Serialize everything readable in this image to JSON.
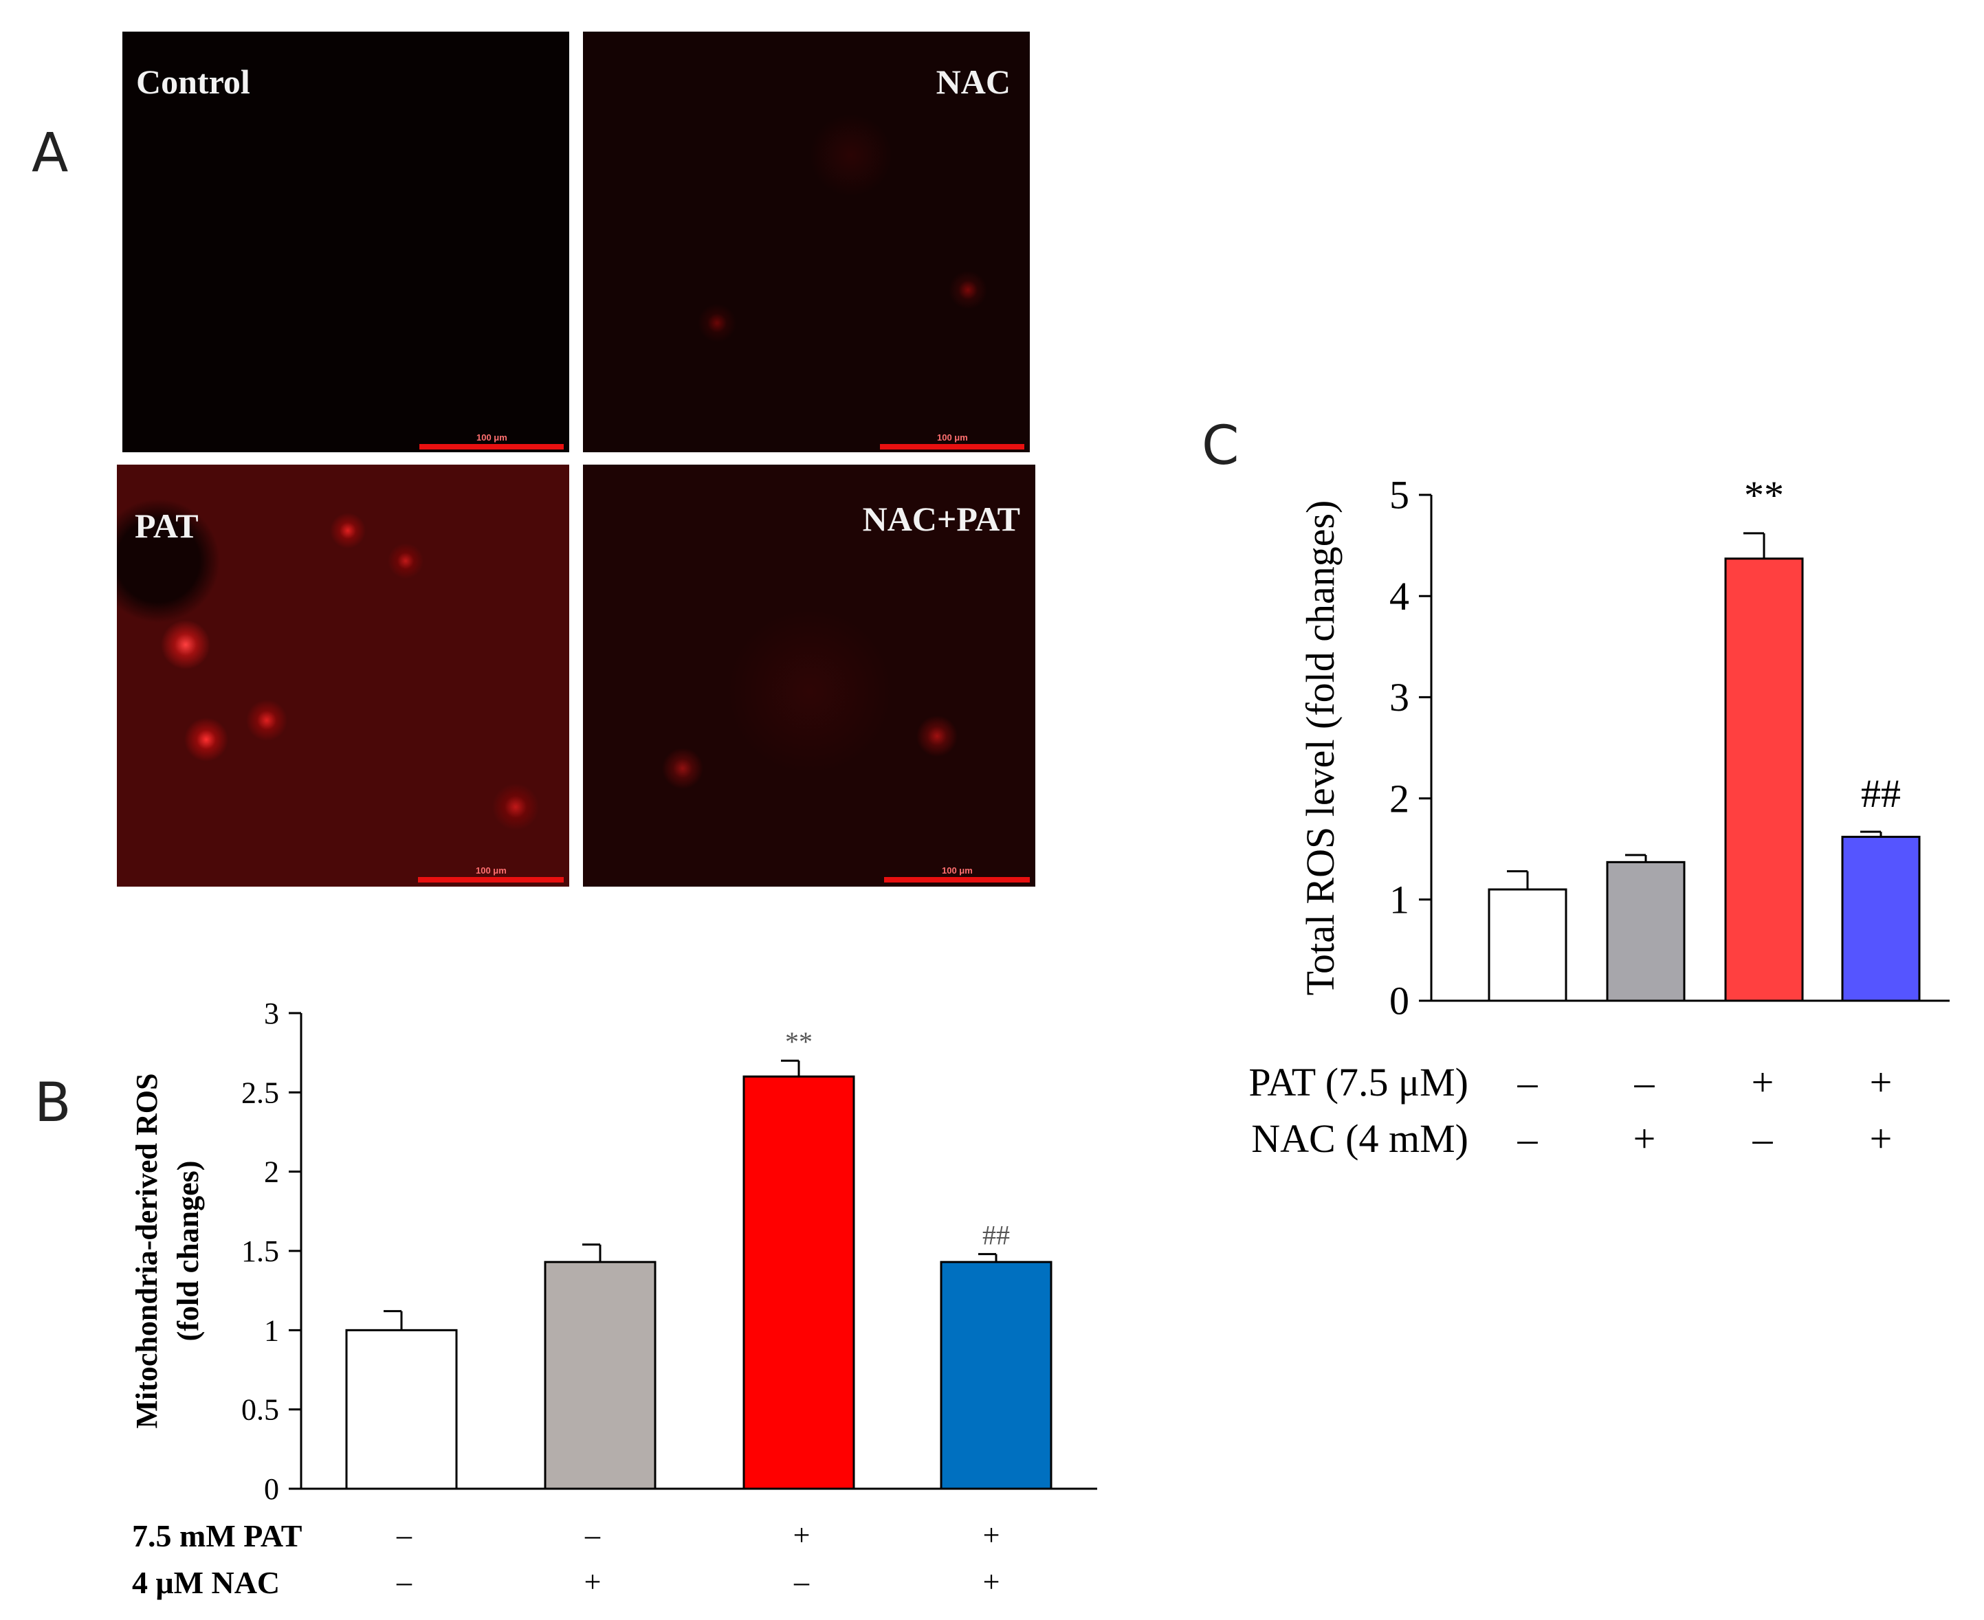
{
  "panels": {
    "a": "A",
    "b": "B",
    "c": "C"
  },
  "micrographs": [
    {
      "label": "Control",
      "scale": "100 μm"
    },
    {
      "label": "NAC",
      "scale": "100 μm"
    },
    {
      "label": "PAT",
      "scale": "100 μm"
    },
    {
      "label": "NAC+PAT",
      "scale": "100 μm"
    }
  ],
  "colors": {
    "control": "#ffffff",
    "nac_b": "#b4aeab",
    "pat_b": "#ff0000",
    "nacpat_b": "#0070c0",
    "nac_c": "#a7a6ab",
    "pat_c": "#ff4040",
    "nacpat_c": "#5555ff"
  },
  "chart_data": [
    {
      "id": "B",
      "type": "bar",
      "title": "",
      "ylabel_line1": "Mitochondria-derived ROS",
      "ylabel_line2": "(fold changes)",
      "ylim": [
        0,
        3
      ],
      "yticks": [
        "0",
        "0.5",
        "1",
        "1.5",
        "2",
        "2.5",
        "3"
      ],
      "ytick_values": [
        0,
        0.5,
        1,
        1.5,
        2,
        2.5,
        3
      ],
      "values": [
        1.0,
        1.43,
        2.6,
        1.43
      ],
      "errors": [
        0.12,
        0.11,
        0.1,
        0.05
      ],
      "annotations": [
        "",
        "",
        "**",
        "##"
      ],
      "conditions": [
        {
          "label": "7.5 mM PAT",
          "signs": [
            "–",
            "–",
            "+",
            "+"
          ]
        },
        {
          "label": "4 μM NAC",
          "signs": [
            "–",
            "+",
            "–",
            "+"
          ]
        }
      ]
    },
    {
      "id": "C",
      "type": "bar",
      "title": "",
      "ylabel": "Total ROS level (fold changes)",
      "ylim": [
        0,
        5
      ],
      "yticks": [
        "0",
        "1",
        "2",
        "3",
        "4",
        "5"
      ],
      "ytick_values": [
        0,
        1,
        2,
        3,
        4,
        5
      ],
      "values": [
        1.1,
        1.37,
        4.37,
        1.62
      ],
      "errors": [
        0.18,
        0.07,
        0.25,
        0.05
      ],
      "annotations": [
        "",
        "",
        "**",
        "##"
      ],
      "conditions": [
        {
          "label": "PAT (7.5 μM)",
          "signs": [
            "–",
            "–",
            "+",
            "+"
          ]
        },
        {
          "label": "NAC (4 mM)",
          "signs": [
            "–",
            "+",
            "–",
            "+"
          ]
        }
      ]
    }
  ]
}
